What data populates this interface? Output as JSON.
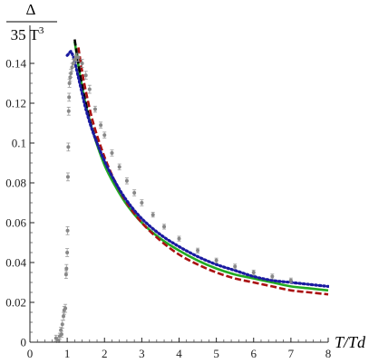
{
  "chart_data": {
    "type": "line",
    "title": "",
    "xlabel": "T/Td",
    "ylabel_numerator": "Δ",
    "ylabel_denominator": "35 T",
    "ylabel_denominator_exponent": "3",
    "xlim": [
      0,
      8
    ],
    "ylim": [
      0,
      0.15
    ],
    "xticks": [
      "0",
      "1",
      "2",
      "3",
      "4",
      "5",
      "6",
      "7",
      "8"
    ],
    "yticks": [
      "0",
      "0.02",
      "0.04",
      "0.06",
      "0.08",
      "0.1",
      "0.12",
      "0.14"
    ],
    "grid": false,
    "legend": "none",
    "series": [
      {
        "style": "points-with-errorbars",
        "color": "#888888",
        "x": [
          0.7,
          0.75,
          0.8,
          0.83,
          0.85,
          0.87,
          0.9,
          0.92,
          0.95,
          0.97,
          0.98,
          1.0,
          1.01,
          1.02,
          1.03,
          1.04,
          1.05,
          1.06,
          1.08,
          1.1,
          1.13,
          1.16,
          1.2,
          1.25,
          1.3,
          1.4,
          1.5,
          1.6,
          1.75,
          1.9,
          2.0,
          2.2,
          2.4,
          2.6,
          2.8,
          3.0,
          3.3,
          3.6,
          4.0,
          4.5,
          5.0,
          5.5,
          6.0,
          6.5,
          7.0
        ],
        "y": [
          0.002,
          0.001,
          0.003,
          0.006,
          0.004,
          0.009,
          0.013,
          0.016,
          0.017,
          0.034,
          0.037,
          0.045,
          0.056,
          0.083,
          0.098,
          0.116,
          0.123,
          0.13,
          0.133,
          0.135,
          0.138,
          0.14,
          0.142,
          0.143,
          0.143,
          0.14,
          0.134,
          0.127,
          0.117,
          0.109,
          0.104,
          0.095,
          0.088,
          0.081,
          0.075,
          0.07,
          0.064,
          0.058,
          0.052,
          0.046,
          0.041,
          0.038,
          0.035,
          0.033,
          0.031
        ],
        "yerr": [
          0.0015,
          0.0015,
          0.0015,
          0.0015,
          0.0015,
          0.002,
          0.002,
          0.002,
          0.002,
          0.002,
          0.002,
          0.002,
          0.002,
          0.002,
          0.002,
          0.002,
          0.002,
          0.002,
          0.002,
          0.002,
          0.002,
          0.002,
          0.002,
          0.002,
          0.002,
          0.002,
          0.002,
          0.002,
          0.0015,
          0.0015,
          0.0015,
          0.0015,
          0.0015,
          0.0015,
          0.0015,
          0.0015,
          0.0012,
          0.0012,
          0.0012,
          0.0012,
          0.0012,
          0.0012,
          0.0012,
          0.0012,
          0.0012
        ]
      },
      {
        "style": "solid",
        "color": "#22aa22",
        "x": [
          1.2,
          1.3,
          1.4,
          1.5,
          1.7,
          2.0,
          2.3,
          2.6,
          3.0,
          3.5,
          4.0,
          4.5,
          5.0,
          5.5,
          6.0,
          6.5,
          7.0,
          7.5,
          8.0
        ],
        "y": [
          0.151,
          0.139,
          0.128,
          0.119,
          0.105,
          0.089,
          0.078,
          0.069,
          0.06,
          0.052,
          0.046,
          0.041,
          0.037,
          0.034,
          0.032,
          0.03,
          0.028,
          0.027,
          0.026
        ]
      },
      {
        "style": "dotted",
        "color": "#1a1aa0",
        "x": [
          1.0,
          1.05,
          1.1,
          1.15,
          1.2,
          1.3,
          1.4,
          1.5,
          1.7,
          2.0,
          2.3,
          2.6,
          3.0,
          3.5,
          4.0,
          4.5,
          5.0,
          5.5,
          6.0,
          6.5,
          7.0,
          7.5,
          8.0
        ],
        "y": [
          0.144,
          0.145,
          0.146,
          0.144,
          0.141,
          0.133,
          0.125,
          0.117,
          0.105,
          0.091,
          0.08,
          0.071,
          0.062,
          0.054,
          0.048,
          0.043,
          0.039,
          0.036,
          0.033,
          0.031,
          0.03,
          0.029,
          0.028
        ]
      },
      {
        "style": "dashed",
        "color": "#000000",
        "x": [
          1.2,
          1.3,
          1.4,
          1.6,
          1.8
        ],
        "y": [
          0.152,
          0.14,
          0.129,
          0.112,
          0.1
        ]
      },
      {
        "style": "dashed",
        "color": "#aa1111",
        "x": [
          1.3,
          1.4,
          1.5,
          1.7,
          2.0,
          2.3,
          2.6,
          3.0,
          3.5,
          4.0,
          4.5,
          5.0,
          5.5,
          6.0,
          6.5,
          7.0,
          7.5,
          8.0
        ],
        "y": [
          0.148,
          0.136,
          0.126,
          0.11,
          0.093,
          0.08,
          0.07,
          0.06,
          0.051,
          0.044,
          0.039,
          0.035,
          0.032,
          0.03,
          0.028,
          0.026,
          0.025,
          0.024
        ]
      }
    ]
  }
}
